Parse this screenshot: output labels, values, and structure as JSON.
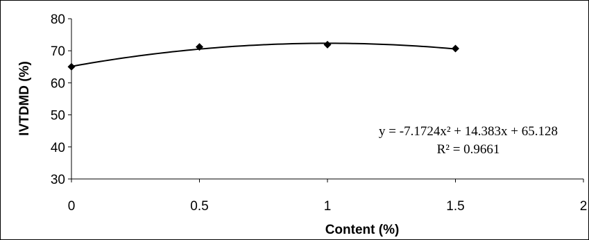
{
  "chart_data": {
    "type": "scatter",
    "title": "",
    "xlabel": "Content (%)",
    "ylabel": "IVTDMD (%)",
    "xlim": [
      0,
      2
    ],
    "ylim": [
      30,
      80
    ],
    "x_ticks": [
      "0",
      "0.5",
      "1",
      "1.5",
      "2"
    ],
    "y_ticks": [
      "30",
      "40",
      "50",
      "60",
      "70",
      "80"
    ],
    "grid": false,
    "legend": "none",
    "series": [
      {
        "x": [
          0,
          0.5,
          1,
          1.5
        ],
        "y": [
          65.0,
          71.2,
          71.9,
          70.7
        ],
        "marker": "diamond",
        "color": "#000000"
      }
    ],
    "trendline": {
      "type": "polynomial",
      "coefficients": [
        -7.1724,
        14.383,
        65.128
      ],
      "x_range": [
        0,
        1.5
      ],
      "equation": "y = -7.1724x² + 14.383x + 65.128",
      "r_squared": "R² = 0.9661"
    }
  }
}
